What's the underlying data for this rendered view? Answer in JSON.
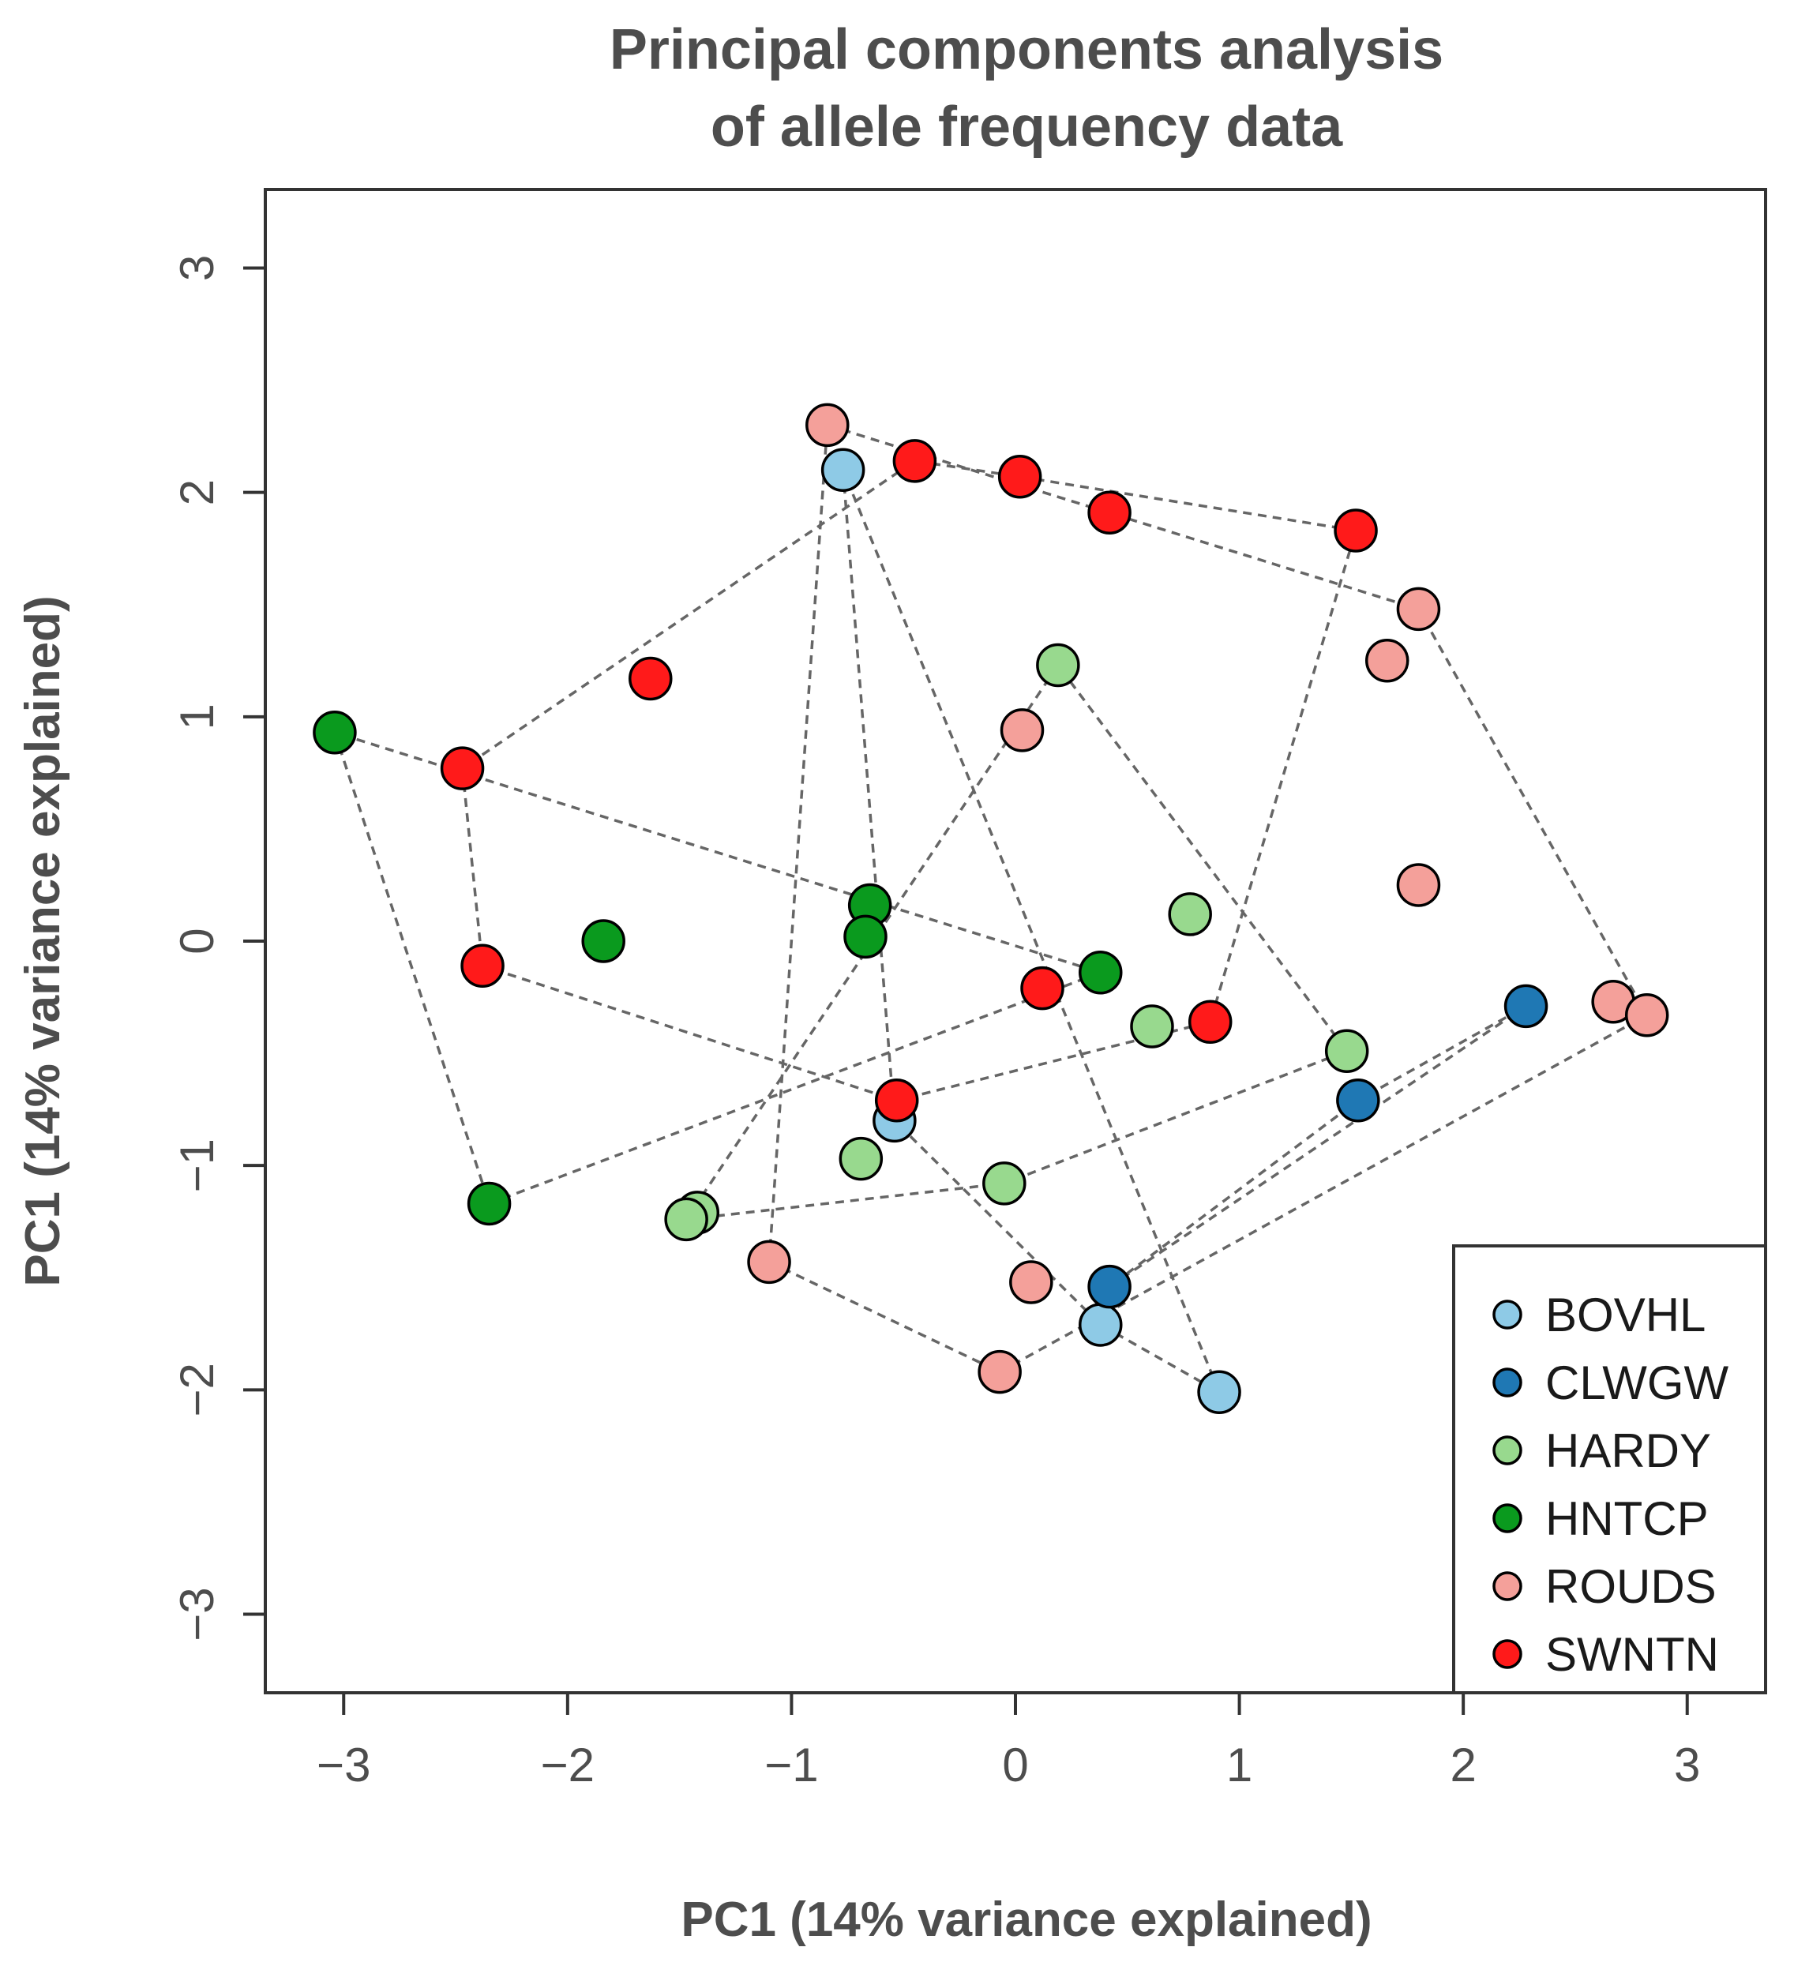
{
  "chart_data": {
    "type": "scatter",
    "title_line1": "Principal components analysis",
    "title_line2": "of allele frequency data",
    "xlabel": "PC1 (14% variance explained)",
    "ylabel": "PC1 (14% variance explained)",
    "xlim": [
      -3.35,
      3.35
    ],
    "ylim": [
      -3.35,
      3.35
    ],
    "xticks": [
      -3,
      -2,
      -1,
      0,
      1,
      2,
      3
    ],
    "yticks": [
      -3,
      -2,
      -1,
      0,
      1,
      2,
      3
    ],
    "xtick_labels": [
      "−3",
      "−2",
      "−1",
      "0",
      "1",
      "2",
      "3"
    ],
    "ytick_labels": [
      "−3",
      "−2",
      "−1",
      "0",
      "1",
      "2",
      "3"
    ],
    "legend_position": "bottom-right",
    "series": [
      {
        "name": "BOVHL",
        "color": "#8ecae6",
        "hull": true,
        "points": [
          [
            -0.77,
            2.1
          ],
          [
            -0.54,
            -0.8
          ],
          [
            0.38,
            -1.71
          ],
          [
            0.91,
            -2.01
          ]
        ]
      },
      {
        "name": "CLWGW",
        "color": "#1f78b4",
        "hull": true,
        "points": [
          [
            2.28,
            -0.29
          ],
          [
            1.53,
            -0.71
          ],
          [
            0.42,
            -1.54
          ]
        ]
      },
      {
        "name": "HARDY",
        "color": "#98d98e",
        "hull": true,
        "points": [
          [
            0.19,
            1.23
          ],
          [
            0.78,
            0.12
          ],
          [
            0.61,
            -0.38
          ],
          [
            1.48,
            -0.49
          ],
          [
            -0.69,
            -0.97
          ],
          [
            -0.05,
            -1.08
          ],
          [
            -1.42,
            -1.21
          ],
          [
            -1.47,
            -1.24
          ]
        ]
      },
      {
        "name": "HNTCP",
        "color": "#0a9a1e",
        "hull": true,
        "points": [
          [
            -3.04,
            0.93
          ],
          [
            -1.84,
            0.0
          ],
          [
            -0.65,
            0.16
          ],
          [
            -0.67,
            0.02
          ],
          [
            0.38,
            -0.14
          ],
          [
            -2.35,
            -1.17
          ]
        ]
      },
      {
        "name": "ROUDS",
        "color": "#f4a09a",
        "hull": true,
        "points": [
          [
            -0.84,
            2.3
          ],
          [
            1.8,
            1.48
          ],
          [
            1.66,
            1.25
          ],
          [
            0.03,
            0.94
          ],
          [
            1.8,
            0.25
          ],
          [
            2.67,
            -0.27
          ],
          [
            2.82,
            -0.33
          ],
          [
            -1.1,
            -1.43
          ],
          [
            0.07,
            -1.52
          ],
          [
            -0.07,
            -1.92
          ]
        ]
      },
      {
        "name": "SWNTN",
        "color": "#ff1a1a",
        "hull": true,
        "points": [
          [
            -0.45,
            2.14
          ],
          [
            0.02,
            2.07
          ],
          [
            0.42,
            1.91
          ],
          [
            1.52,
            1.83
          ],
          [
            -1.63,
            1.17
          ],
          [
            -2.47,
            0.77
          ],
          [
            -2.38,
            -0.11
          ],
          [
            0.12,
            -0.21
          ],
          [
            0.87,
            -0.36
          ],
          [
            -0.53,
            -0.71
          ]
        ]
      }
    ]
  }
}
